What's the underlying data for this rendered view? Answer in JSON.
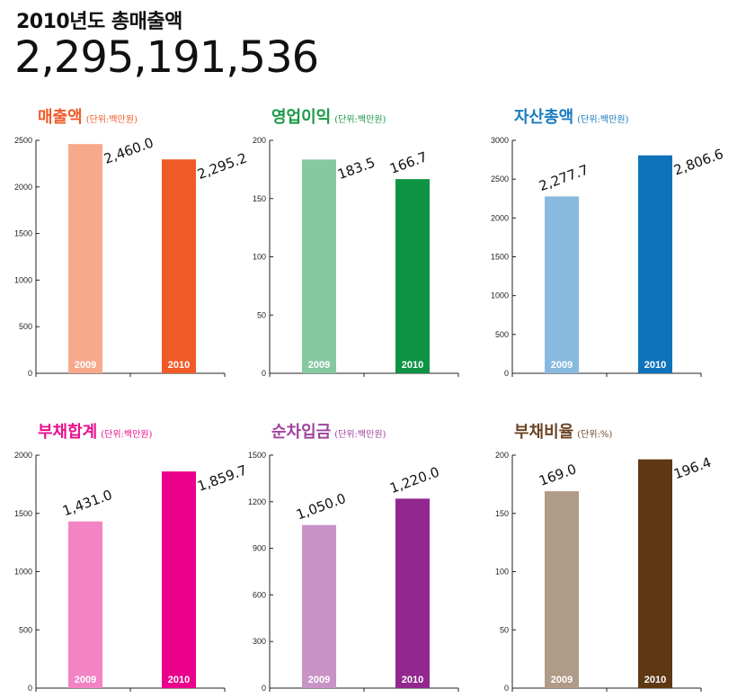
{
  "header": {
    "subtitle": "2010년도 총매출액",
    "total": "2,295,191,536"
  },
  "chart_data": [
    {
      "type": "bar",
      "title": "매출액",
      "unit_label": "(단위:백만원)",
      "title_color": "#f05a28",
      "categories": [
        "2009",
        "2010"
      ],
      "values": [
        2460.0,
        2295.2
      ],
      "value_labels": [
        "2,460.0",
        "2,295.2"
      ],
      "bar_colors": [
        "#f7a98c",
        "#f05a28"
      ],
      "ylim": [
        0,
        2500
      ],
      "yticks": [
        "0",
        "500",
        "1000",
        "1500",
        "2000",
        "2500"
      ]
    },
    {
      "type": "bar",
      "title": "영업이익",
      "unit_label": "(단위:백만원)",
      "title_color": "#1a9a48",
      "categories": [
        "2009",
        "2010"
      ],
      "values": [
        183.5,
        166.7
      ],
      "value_labels": [
        "183.5",
        "166.7"
      ],
      "bar_colors": [
        "#86c9a0",
        "#0e9444"
      ],
      "ylim": [
        0,
        200
      ],
      "yticks": [
        "0",
        "50",
        "100",
        "150",
        "200"
      ]
    },
    {
      "type": "bar",
      "title": "자산총액",
      "unit_label": "(단위:백만원)",
      "title_color": "#1a7bbf",
      "categories": [
        "2009",
        "2010"
      ],
      "values": [
        2277.7,
        2806.6
      ],
      "value_labels": [
        "2,277.7",
        "2,806.6"
      ],
      "bar_colors": [
        "#88bae0",
        "#0f73bb"
      ],
      "ylim": [
        0,
        3000
      ],
      "yticks": [
        "0",
        "500",
        "1000",
        "1500",
        "2000",
        "2500",
        "3000"
      ]
    },
    {
      "type": "bar",
      "title": "부채합계",
      "unit_label": "(단위:백만원)",
      "title_color": "#e8108e",
      "categories": [
        "2009",
        "2010"
      ],
      "values": [
        1431.0,
        1859.7
      ],
      "value_labels": [
        "1,431.0",
        "1,859.7"
      ],
      "bar_colors": [
        "#f284c4",
        "#ea008b"
      ],
      "ylim": [
        0,
        2000
      ],
      "yticks": [
        "0",
        "500",
        "1000",
        "1500",
        "2000"
      ]
    },
    {
      "type": "bar",
      "title": "순차입금",
      "unit_label": "(단위:백만원)",
      "title_color": "#a0449e",
      "categories": [
        "2009",
        "2010"
      ],
      "values": [
        1050.0,
        1220.0
      ],
      "value_labels": [
        "1,050.0",
        "1,220.0"
      ],
      "bar_colors": [
        "#c893c7",
        "#92278f"
      ],
      "ylim": [
        0,
        1500
      ],
      "yticks": [
        "0",
        "300",
        "600",
        "900",
        "1200",
        "1500"
      ]
    },
    {
      "type": "bar",
      "title": "부채비율",
      "unit_label": "(단위:%)",
      "title_color": "#6b4525",
      "categories": [
        "2009",
        "2010"
      ],
      "values": [
        169.0,
        196.4
      ],
      "value_labels": [
        "169.0",
        "196.4"
      ],
      "bar_colors": [
        "#b09a88",
        "#5e3813"
      ],
      "ylim": [
        0,
        200
      ],
      "yticks": [
        "0",
        "50",
        "100",
        "150",
        "200"
      ]
    }
  ]
}
